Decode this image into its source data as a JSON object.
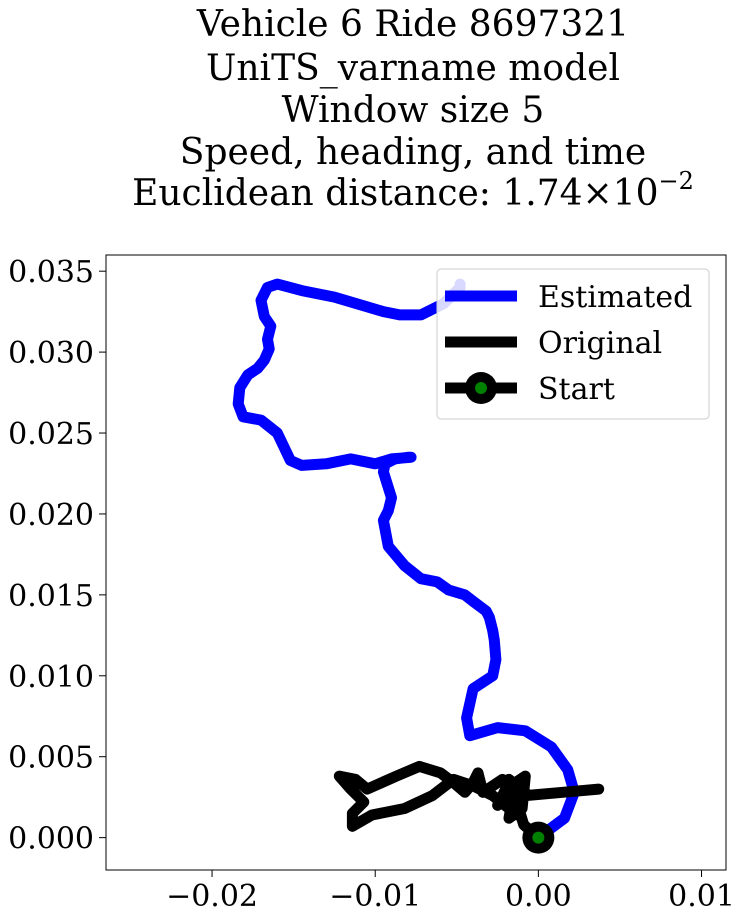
{
  "chart_data": {
    "type": "line",
    "title_lines": [
      "Vehicle 6 Ride 8697321",
      "UniTS_varname model",
      "Window size 5",
      "Speed, heading, and time",
      "Euclidean distance: 1.74 × 10⁻²"
    ],
    "title_euclid_prefix": "Euclidean distance: 1.74×10",
    "title_euclid_exp": "−2",
    "xlabel": "",
    "ylabel": "",
    "xlim": [
      -0.0265,
      0.0115
    ],
    "ylim": [
      -0.002,
      0.036
    ],
    "x_ticks": [
      -0.02,
      -0.01,
      0.0,
      0.01
    ],
    "x_tick_labels": [
      "−0.02",
      "−0.01",
      "0.00",
      "0.01"
    ],
    "y_ticks": [
      0.0,
      0.005,
      0.01,
      0.015,
      0.02,
      0.025,
      0.03,
      0.035
    ],
    "y_tick_labels": [
      "0.000",
      "0.005",
      "0.010",
      "0.015",
      "0.020",
      "0.025",
      "0.030",
      "0.035"
    ],
    "grid": false,
    "legend_position": "top-right",
    "legend": [
      "Estimated",
      "Original",
      "Start"
    ],
    "colors": {
      "estimated": "#0000ff",
      "original": "#000000",
      "start_outer": "#000000",
      "start_inner": "#008000"
    },
    "series": [
      {
        "name": "Estimated",
        "x": [
          0.0,
          0.0016,
          0.0022,
          0.0018,
          0.0008,
          -0.0008,
          -0.0025,
          -0.0042,
          -0.0044,
          -0.004,
          -0.0028,
          -0.0026,
          -0.0027,
          -0.0028,
          -0.003,
          -0.0032,
          -0.004,
          -0.0045,
          -0.0055,
          -0.0062,
          -0.0072,
          -0.0082,
          -0.0092,
          -0.0095,
          -0.0092,
          -0.009,
          -0.0095,
          -0.0094,
          -0.0088,
          -0.008,
          -0.0078,
          -0.009,
          -0.01,
          -0.0115,
          -0.013,
          -0.0145,
          -0.0152,
          -0.016,
          -0.017,
          -0.0181,
          -0.0184,
          -0.0183,
          -0.0178,
          -0.0172,
          -0.0168,
          -0.0165,
          -0.0166,
          -0.0164,
          -0.0168,
          -0.017,
          -0.0166,
          -0.016,
          -0.0145,
          -0.0125,
          -0.0095,
          -0.0085,
          -0.0072,
          -0.0058,
          -0.0048,
          -0.0048
        ],
        "y": [
          0.0,
          0.0012,
          0.0028,
          0.0042,
          0.0056,
          0.0066,
          0.0068,
          0.0063,
          0.0074,
          0.0092,
          0.01,
          0.011,
          0.0122,
          0.0128,
          0.0136,
          0.014,
          0.0146,
          0.015,
          0.0153,
          0.0158,
          0.016,
          0.0168,
          0.018,
          0.0196,
          0.0202,
          0.021,
          0.0226,
          0.0231,
          0.0234,
          0.0235,
          0.0235,
          0.0234,
          0.0231,
          0.0234,
          0.0231,
          0.023,
          0.0233,
          0.025,
          0.0258,
          0.026,
          0.0268,
          0.0278,
          0.0286,
          0.029,
          0.0295,
          0.0302,
          0.0308,
          0.0316,
          0.0322,
          0.0332,
          0.034,
          0.0342,
          0.0338,
          0.0334,
          0.0325,
          0.0323,
          0.0323,
          0.033,
          0.034,
          0.0342
        ]
      },
      {
        "name": "Original",
        "x": [
          0.0,
          -0.0009,
          -0.0012,
          -0.0008,
          -0.0018,
          -0.0013,
          -0.0028,
          -0.004,
          -0.0052,
          -0.0065,
          -0.0082,
          -0.0102,
          -0.0114,
          -0.0114,
          -0.0107,
          -0.0115,
          -0.0122,
          -0.0112,
          -0.0105,
          -0.0087,
          -0.0073,
          -0.006,
          -0.0052,
          -0.0045,
          -0.004,
          -0.0037,
          -0.0034,
          -0.0022,
          -0.0016,
          -0.0018,
          -0.001,
          -0.0008,
          -0.002,
          -0.0025,
          -0.002,
          -0.0008,
          0.0015,
          0.0037
        ],
        "y": [
          0.0,
          0.0008,
          0.0018,
          0.0028,
          0.0036,
          0.0014,
          0.0026,
          0.0032,
          0.0036,
          0.0026,
          0.0018,
          0.0014,
          0.0007,
          0.0015,
          0.0022,
          0.003,
          0.0038,
          0.0036,
          0.003,
          0.0038,
          0.0044,
          0.004,
          0.0034,
          0.0028,
          0.0034,
          0.004,
          0.0028,
          0.0036,
          0.0024,
          0.0012,
          0.0018,
          0.0038,
          0.003,
          0.002,
          0.0024,
          0.0026,
          0.0028,
          0.003
        ]
      }
    ],
    "start_point": {
      "x": 0.0,
      "y": 0.0
    }
  }
}
